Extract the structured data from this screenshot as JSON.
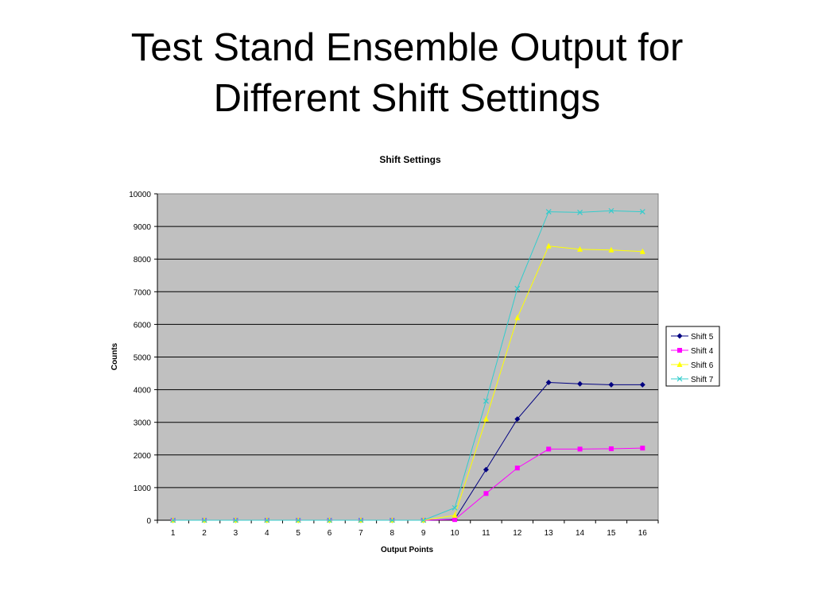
{
  "slide": {
    "title_line1": "Test Stand Ensemble Output for",
    "title_line2": "Different Shift Settings"
  },
  "chart_data": {
    "type": "line",
    "title": "Shift Settings",
    "xlabel": "Output Points",
    "ylabel": "Counts",
    "categories": [
      "1",
      "2",
      "3",
      "4",
      "5",
      "6",
      "7",
      "8",
      "9",
      "10",
      "11",
      "12",
      "13",
      "14",
      "15",
      "16"
    ],
    "ylim": [
      0,
      10000
    ],
    "yticks": [
      0,
      1000,
      2000,
      3000,
      4000,
      5000,
      6000,
      7000,
      8000,
      9000,
      10000
    ],
    "grid": true,
    "legend_position": "right",
    "plot_background": "#c0c0c0",
    "series": [
      {
        "name": "Shift 5",
        "color": "#000080",
        "marker": "diamond",
        "values": [
          0,
          0,
          0,
          0,
          0,
          0,
          0,
          0,
          0,
          30,
          1550,
          3100,
          4220,
          4180,
          4150,
          4150
        ]
      },
      {
        "name": "Shift 4",
        "color": "#ff00ff",
        "marker": "square",
        "values": [
          0,
          0,
          0,
          0,
          0,
          0,
          0,
          0,
          0,
          20,
          820,
          1600,
          2180,
          2180,
          2190,
          2210
        ]
      },
      {
        "name": "Shift 6",
        "color": "#ffff00",
        "marker": "triangle",
        "values": [
          0,
          0,
          0,
          0,
          0,
          0,
          0,
          0,
          0,
          150,
          3100,
          6200,
          8400,
          8300,
          8280,
          8230
        ]
      },
      {
        "name": "Shift 7",
        "color": "#33cccc",
        "marker": "x",
        "values": [
          0,
          0,
          0,
          0,
          0,
          0,
          0,
          0,
          0,
          380,
          3650,
          7100,
          9450,
          9430,
          9480,
          9450
        ]
      }
    ]
  }
}
